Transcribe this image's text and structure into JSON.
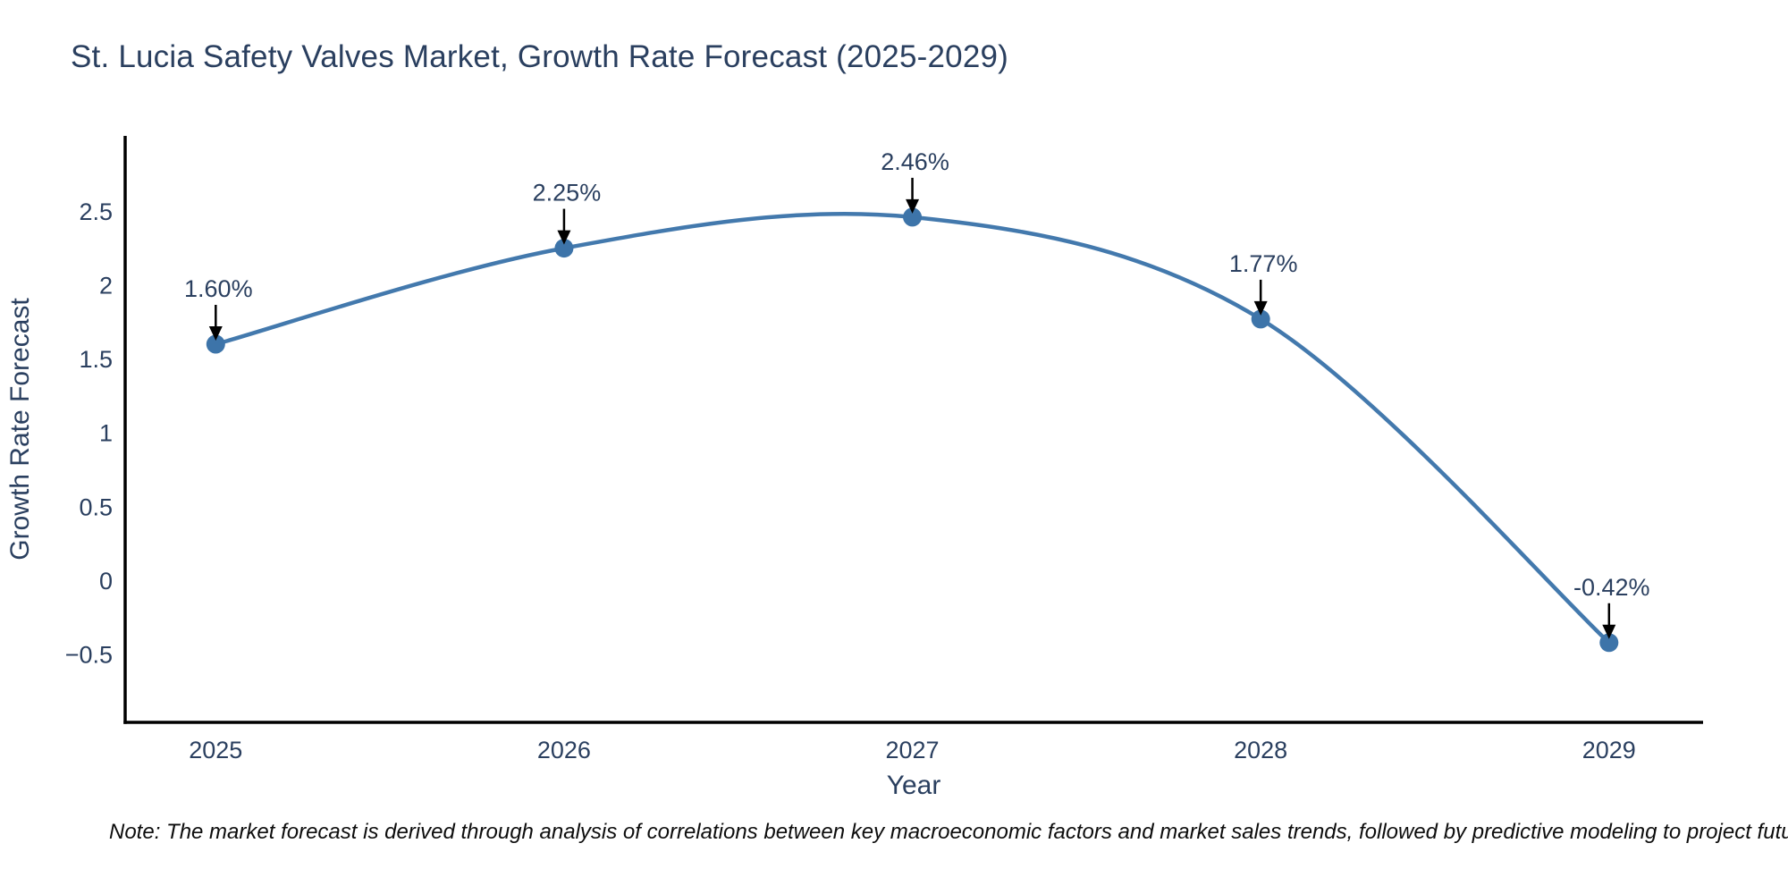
{
  "title": {
    "text": "St. Lucia Safety Valves Market, Growth Rate Forecast (2025-2029)",
    "color": "#2a3f5f"
  },
  "note": {
    "text": "Note: The market forecast is derived through analysis of correlations between key macroeconomic factors and market sales trends, followed by predictive modeling to project future sa"
  },
  "chart_data": {
    "type": "line",
    "title": "St. Lucia Safety Valves Market, Growth Rate Forecast (2025-2029)",
    "xlabel": "Year",
    "ylabel": "Growth Rate Forecast",
    "x": [
      2025,
      2026,
      2027,
      2028,
      2029
    ],
    "y": [
      1.6,
      2.25,
      2.46,
      1.77,
      -0.42
    ],
    "point_labels": [
      "1.60%",
      "2.25%",
      "2.46%",
      "1.77%",
      "-0.42%"
    ],
    "x_tick_labels": [
      "2025",
      "2026",
      "2027",
      "2028",
      "2029"
    ],
    "y_ticks": [
      2.5,
      2,
      1.5,
      1,
      0.5,
      0,
      -0.5
    ],
    "y_tick_labels": [
      "2.5",
      "2",
      "1.5",
      "1",
      "0.5",
      "0",
      "−0.5"
    ],
    "xlim": [
      2024.74,
      2029.27
    ],
    "ylim": [
      -0.96,
      3.01
    ],
    "line_shape": "spline",
    "grid": false,
    "legend": false,
    "colors": {
      "line": "#4379ad",
      "marker": "#3d74a9",
      "axis": "#000000",
      "tick_text": "#2a3f5f",
      "annotation_text": "#2a3f5f",
      "annotation_arrow": "#000000",
      "background": "#ffffff"
    }
  }
}
